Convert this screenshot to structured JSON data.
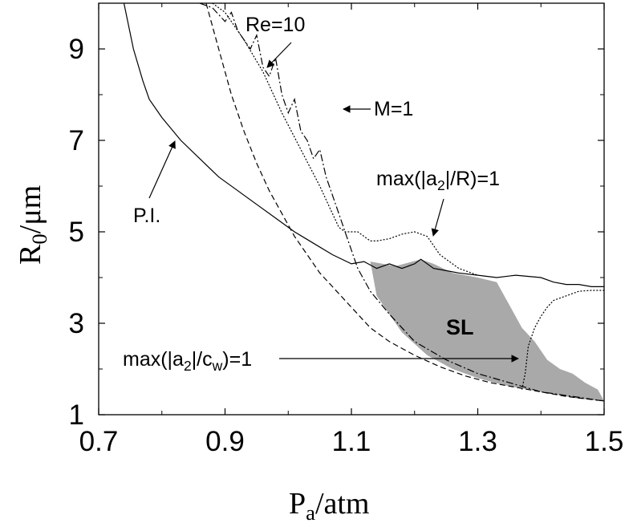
{
  "chart_data": {
    "type": "line",
    "xlabel_main": "P",
    "xlabel_sub": "a",
    "xlabel_unit": "/atm",
    "ylabel_main": "R",
    "ylabel_sub": "0",
    "ylabel_unit": "/μm",
    "xlim": [
      0.7,
      1.5
    ],
    "ylim": [
      1,
      10
    ],
    "xticks": [
      "0.7",
      "0.9",
      "1.1",
      "1.3",
      "1.5"
    ],
    "yticks": [
      "1",
      "3",
      "5",
      "7",
      "9"
    ],
    "grid": false,
    "series": [
      {
        "name": "P.I.",
        "style": "solid",
        "x": [
          0.74,
          0.755,
          0.77,
          0.78,
          0.8,
          0.83,
          0.86,
          0.89,
          0.92,
          0.95,
          0.98,
          1.01,
          1.04,
          1.07,
          1.1,
          1.12,
          1.14,
          1.16,
          1.18,
          1.2,
          1.21,
          1.23,
          1.25,
          1.27,
          1.3,
          1.33,
          1.36,
          1.4,
          1.42,
          1.44,
          1.46,
          1.48,
          1.5
        ],
        "y": [
          10.0,
          9.0,
          8.3,
          7.9,
          7.5,
          7.0,
          6.6,
          6.2,
          5.9,
          5.6,
          5.3,
          5.0,
          4.75,
          4.5,
          4.3,
          4.35,
          4.2,
          4.3,
          4.2,
          4.3,
          4.4,
          4.2,
          4.15,
          4.1,
          4.05,
          4.0,
          4.05,
          4.0,
          3.9,
          3.85,
          3.85,
          3.8,
          3.8
        ]
      },
      {
        "name": "Re=10",
        "style": "dash-dot",
        "x": [
          0.86,
          0.88,
          0.9,
          0.91,
          0.92,
          0.93,
          0.94,
          0.95,
          0.96,
          0.97,
          0.98,
          0.99,
          1.0,
          1.01,
          1.02,
          1.03,
          1.04,
          1.05,
          1.06,
          1.07,
          1.08,
          1.09,
          1.1,
          1.11,
          1.13,
          1.16,
          1.2,
          1.25,
          1.3,
          1.35,
          1.4,
          1.45,
          1.5
        ],
        "y": [
          10.0,
          9.9,
          9.6,
          9.8,
          9.4,
          9.2,
          9.0,
          9.3,
          8.6,
          8.4,
          8.8,
          8.0,
          7.6,
          7.9,
          7.2,
          7.0,
          6.6,
          6.8,
          6.2,
          5.8,
          5.4,
          5.0,
          4.6,
          4.2,
          3.7,
          3.2,
          2.6,
          2.2,
          1.9,
          1.7,
          1.5,
          1.4,
          1.3
        ]
      },
      {
        "name": "M=1",
        "style": "dashed",
        "x": [
          0.87,
          0.89,
          0.91,
          0.93,
          0.95,
          0.97,
          0.99,
          1.01,
          1.03,
          1.05,
          1.07,
          1.09,
          1.11,
          1.13,
          1.16,
          1.2,
          1.24,
          1.28,
          1.32,
          1.36,
          1.4,
          1.44,
          1.47,
          1.5
        ],
        "y": [
          10.0,
          9.0,
          8.0,
          7.2,
          6.5,
          5.9,
          5.4,
          4.9,
          4.5,
          4.1,
          3.8,
          3.5,
          3.2,
          2.9,
          2.6,
          2.3,
          2.05,
          1.85,
          1.7,
          1.6,
          1.5,
          1.4,
          1.35,
          1.3
        ]
      },
      {
        "name": "max(|a2|/R)=1",
        "style": "dotted",
        "x": [
          0.88,
          0.9,
          0.93,
          0.96,
          0.99,
          1.02,
          1.05,
          1.07,
          1.08,
          1.09,
          1.1,
          1.11,
          1.12,
          1.13,
          1.14,
          1.16,
          1.18,
          1.2,
          1.22,
          1.24,
          1.27,
          1.3
        ],
        "y": [
          10.0,
          9.8,
          9.2,
          8.5,
          7.6,
          6.8,
          6.0,
          5.4,
          5.1,
          5.0,
          5.0,
          5.0,
          4.9,
          4.8,
          4.8,
          4.85,
          4.95,
          5.0,
          4.9,
          4.5,
          4.2,
          4.05
        ]
      },
      {
        "name": "max(|a2|/cw)=1",
        "style": "dotted",
        "x": [
          1.37,
          1.375,
          1.38,
          1.39,
          1.4,
          1.41,
          1.42,
          1.44,
          1.46,
          1.48,
          1.5
        ],
        "y": [
          1.55,
          1.9,
          2.5,
          2.9,
          3.15,
          3.35,
          3.5,
          3.6,
          3.7,
          3.72,
          3.72
        ]
      }
    ],
    "shaded_region": {
      "label": "SL",
      "x": [
        1.13,
        1.17,
        1.21,
        1.23,
        1.26,
        1.3,
        1.33,
        1.35,
        1.37,
        1.39,
        1.41,
        1.43,
        1.45,
        1.47,
        1.49,
        1.5,
        1.46,
        1.42,
        1.38,
        1.34,
        1.3,
        1.26,
        1.22,
        1.18,
        1.14
      ],
      "y": [
        4.35,
        4.25,
        4.4,
        4.3,
        4.1,
        4.0,
        3.9,
        3.4,
        2.9,
        2.6,
        2.2,
        2.0,
        1.9,
        1.7,
        1.55,
        1.3,
        1.35,
        1.45,
        1.55,
        1.65,
        1.8,
        2.0,
        2.3,
        2.8,
        3.6
      ]
    },
    "annotations": {
      "re10": "Re=10",
      "m1": "M=1",
      "pi": "P.I.",
      "maxR": "max(|a2|/R)=1",
      "maxCw": "max(|a2|/cw)=1",
      "sl": "SL"
    }
  }
}
